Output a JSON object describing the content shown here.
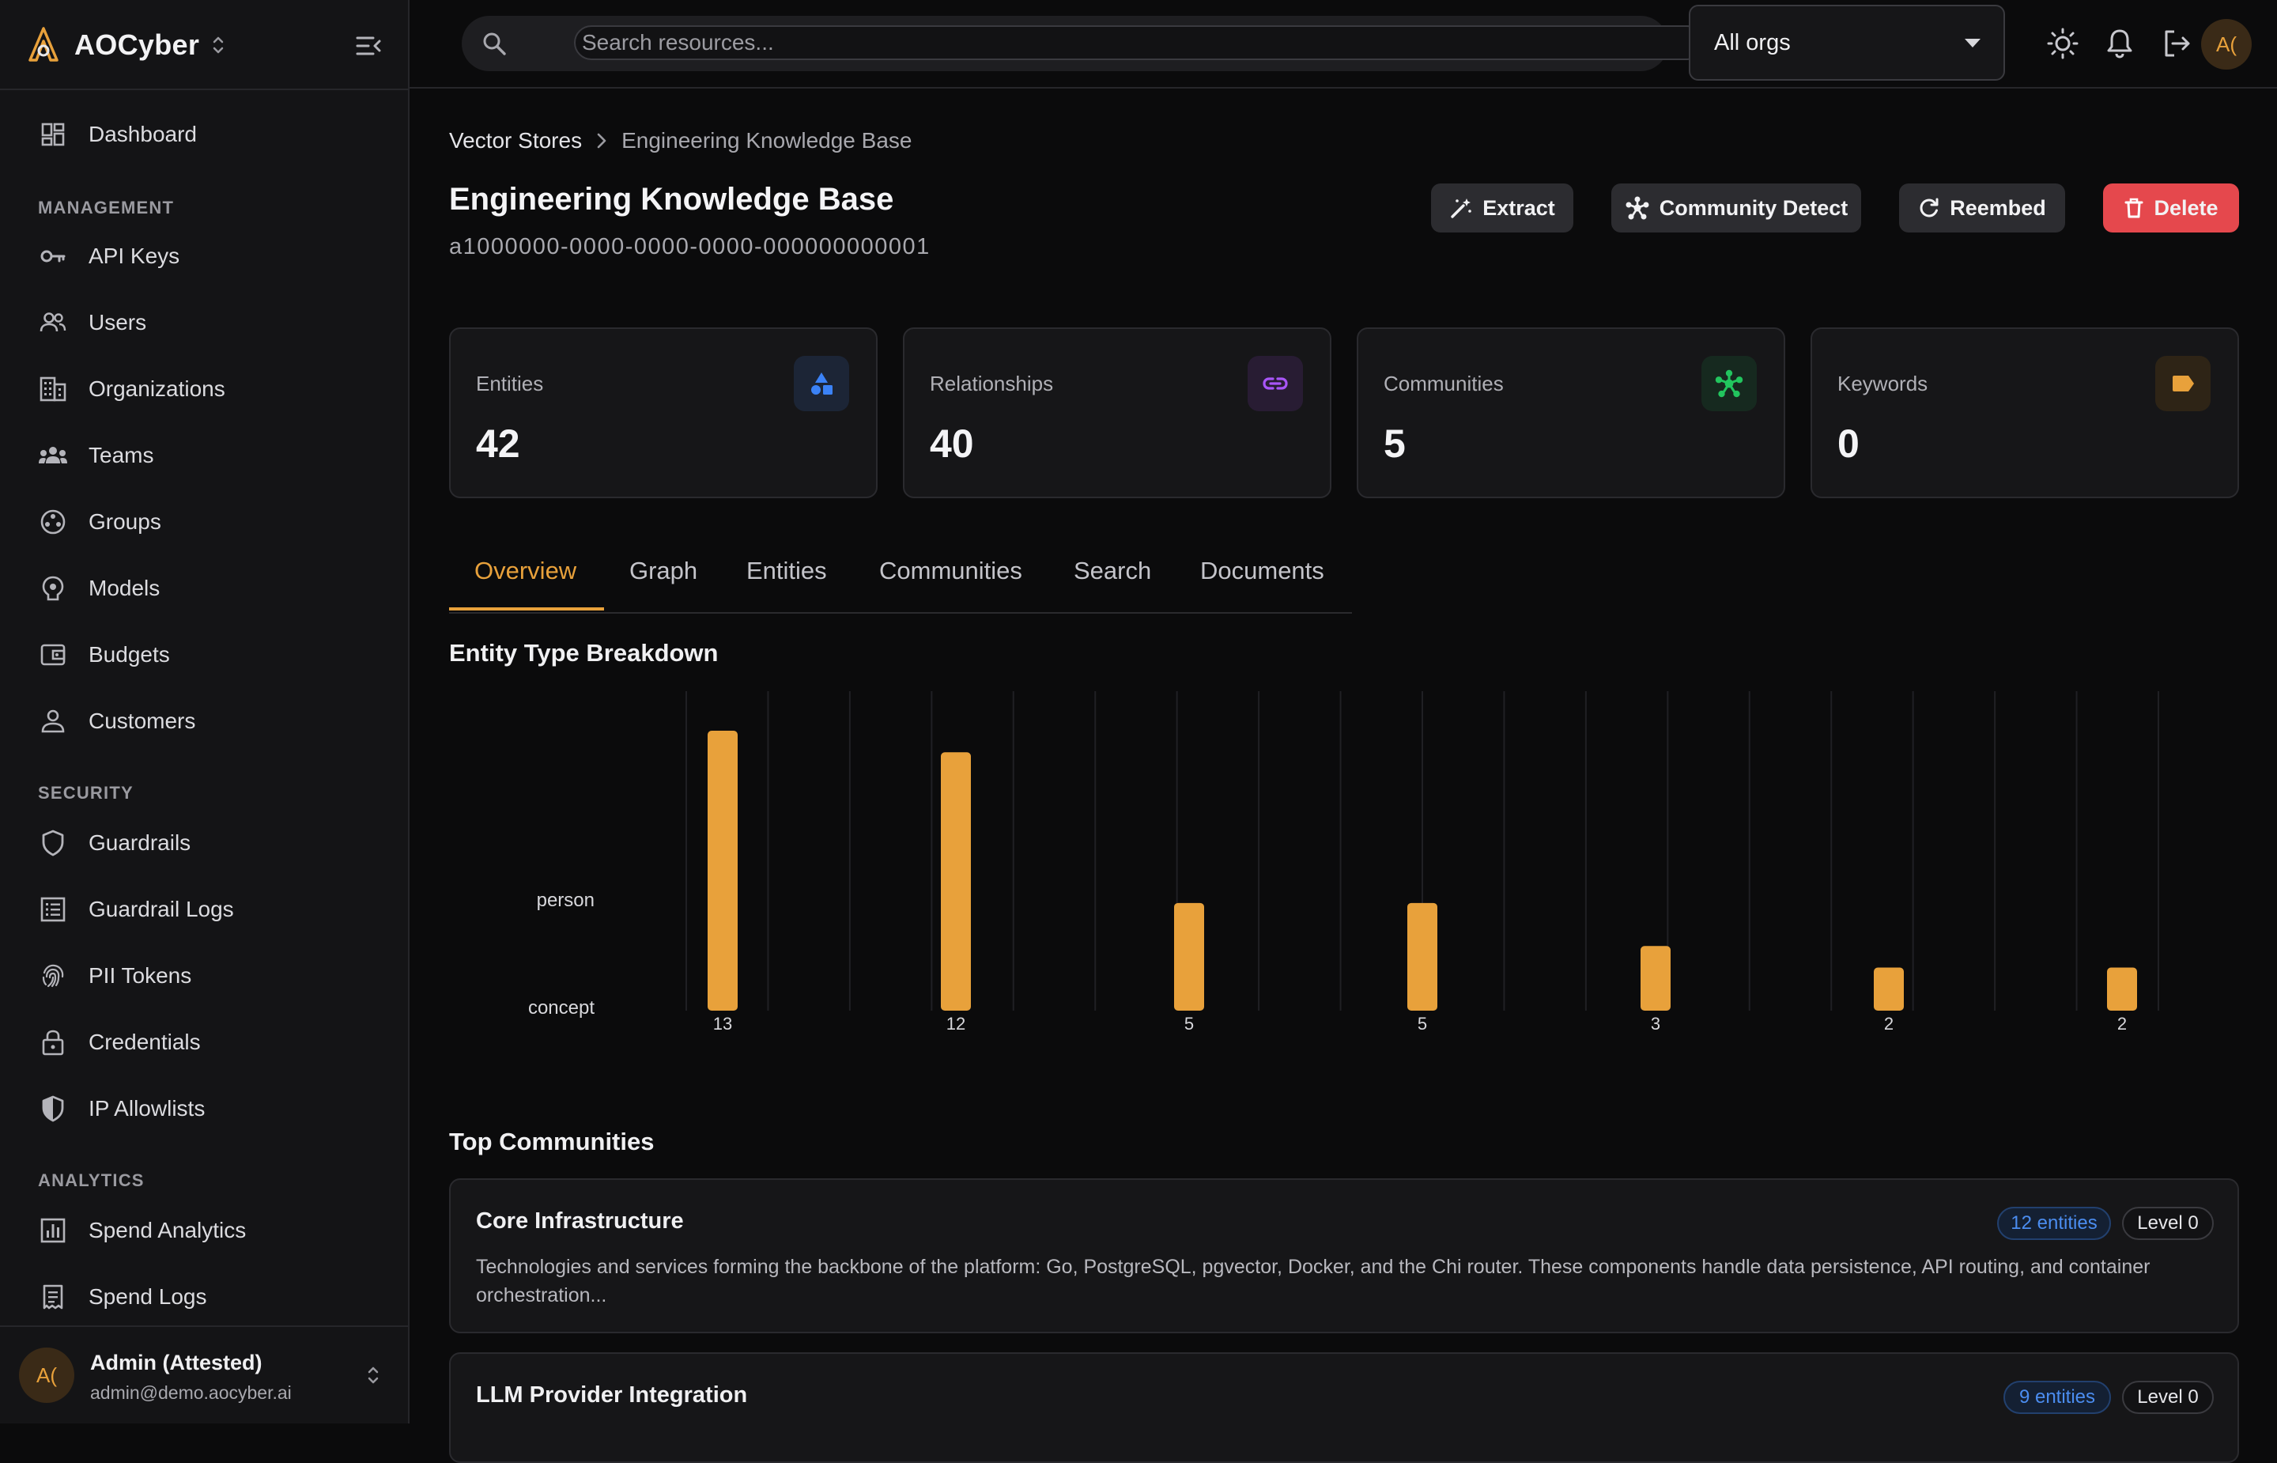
{
  "app": {
    "name": "AOCyber"
  },
  "sidebar": {
    "top_items": [
      {
        "label": "Dashboard",
        "icon": "dashboard-icon"
      }
    ],
    "sections": [
      {
        "title": "MANAGEMENT",
        "items": [
          {
            "label": "API Keys",
            "icon": "key-icon"
          },
          {
            "label": "Users",
            "icon": "users-icon"
          },
          {
            "label": "Organizations",
            "icon": "building-icon"
          },
          {
            "label": "Teams",
            "icon": "team-icon"
          },
          {
            "label": "Groups",
            "icon": "groups-icon"
          },
          {
            "label": "Models",
            "icon": "models-icon"
          },
          {
            "label": "Budgets",
            "icon": "wallet-icon"
          },
          {
            "label": "Customers",
            "icon": "customer-icon"
          }
        ]
      },
      {
        "title": "SECURITY",
        "items": [
          {
            "label": "Guardrails",
            "icon": "shield-icon"
          },
          {
            "label": "Guardrail Logs",
            "icon": "list-icon"
          },
          {
            "label": "PII Tokens",
            "icon": "fingerprint-icon"
          },
          {
            "label": "Credentials",
            "icon": "lock-icon"
          },
          {
            "label": "IP Allowlists",
            "icon": "shield-half-icon"
          }
        ]
      },
      {
        "title": "ANALYTICS",
        "items": [
          {
            "label": "Spend Analytics",
            "icon": "bar-chart-icon"
          },
          {
            "label": "Spend Logs",
            "icon": "receipt-icon"
          }
        ]
      }
    ],
    "user": {
      "initials": "A(",
      "name": "Admin (Attested)",
      "email": "admin@demo.aocyber.ai"
    }
  },
  "topbar": {
    "search_placeholder": "Search resources...",
    "org_select": "All orgs",
    "avatar_initials": "A("
  },
  "breadcrumb": {
    "parent": "Vector Stores",
    "current": "Engineering Knowledge Base"
  },
  "page": {
    "title": "Engineering Knowledge Base",
    "id": "a1000000-0000-0000-0000-000000000001"
  },
  "actions": {
    "extract": "Extract",
    "community_detect": "Community Detect",
    "reembed": "Reembed",
    "delete": "Delete"
  },
  "stats": [
    {
      "label": "Entities",
      "value": "42",
      "icon": "shapes-icon",
      "color": "#3b82f6",
      "bg": "#1c2536"
    },
    {
      "label": "Relationships",
      "value": "40",
      "icon": "link-icon",
      "color": "#a855f7",
      "bg": "#281c33"
    },
    {
      "label": "Communities",
      "value": "5",
      "icon": "network-icon",
      "color": "#22c55e",
      "bg": "#16291f"
    },
    {
      "label": "Keywords",
      "value": "0",
      "icon": "tag-icon",
      "color": "#e8a13b",
      "bg": "#2e2416"
    }
  ],
  "tabs": [
    "Overview",
    "Graph",
    "Entities",
    "Communities",
    "Search",
    "Documents"
  ],
  "active_tab": "Overview",
  "sections": {
    "breakdown": "Entity Type Breakdown",
    "top_communities": "Top Communities"
  },
  "chart_data": {
    "type": "bar",
    "title": "Entity Type Breakdown",
    "y_tick_labels": [
      "person",
      "concept"
    ],
    "values": [
      13,
      12,
      5,
      5,
      3,
      2,
      2
    ],
    "value_labels": [
      "13",
      "12",
      "5",
      "5",
      "3",
      "2",
      "2"
    ],
    "bar_color": "#e8a13b",
    "ylim": [
      0,
      13
    ],
    "grid": true
  },
  "communities": [
    {
      "name": "Core Infrastructure",
      "entities": "12 entities",
      "level": "Level 0",
      "description": "Technologies and services forming the backbone of the platform: Go, PostgreSQL, pgvector, Docker, and the Chi router. These components handle data persistence, API routing, and container orchestration..."
    },
    {
      "name": "LLM Provider Integration",
      "entities": "9 entities",
      "level": "Level 0",
      "description": ""
    }
  ],
  "colors": {
    "accent": "#e8a13b",
    "danger": "#e5484d",
    "background": "#0b0b0c",
    "surface": "#161618"
  }
}
